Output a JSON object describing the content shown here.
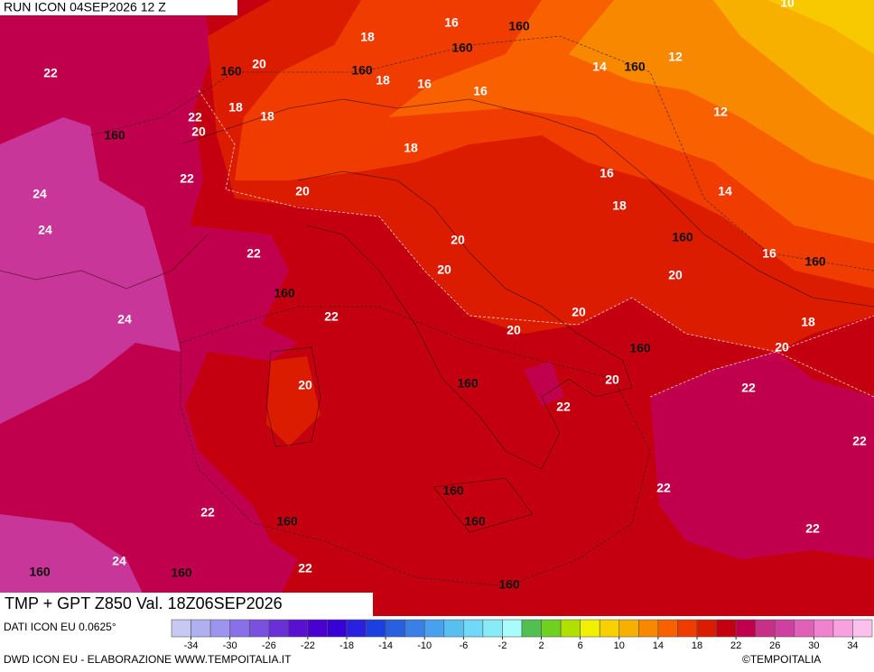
{
  "header": "RUN ICON 04SEP2026 12 Z",
  "title": "TMP + GPT Z850 Val. 18Z06SEP2026",
  "source": "DATI ICON EU 0.0625°",
  "credit": "DWD ICON EU - ELABORAZIONE WWW.TEMPOITALIA.IT",
  "copyright": "©TEMPOITALIA",
  "colorbar": {
    "range": [
      -36,
      36
    ],
    "ticks": [
      -34,
      -30,
      -26,
      -22,
      -18,
      -14,
      -10,
      -6,
      -2,
      2,
      6,
      10,
      14,
      18,
      22,
      26,
      30,
      34
    ],
    "colors": [
      "#c8c8f4",
      "#b0b0f0",
      "#9c94ee",
      "#8a70e8",
      "#7a50e0",
      "#6a30d8",
      "#5a10d0",
      "#4a00d0",
      "#3a00d8",
      "#2a20e0",
      "#1c40e0",
      "#2860e0",
      "#3880e8",
      "#48a0f0",
      "#58c0f0",
      "#70d8f8",
      "#88ecf8",
      "#a8fcfc",
      "#50c050",
      "#70d020",
      "#b0e000",
      "#f0f000",
      "#f8d000",
      "#f8b000",
      "#f88800",
      "#f86000",
      "#f03c00",
      "#dc1c00",
      "#c40010",
      "#c0004c",
      "#c83088",
      "#d040a0",
      "#e060b8",
      "#f080d0",
      "#f8a0e0",
      "#fcc0ec"
    ]
  },
  "isotherm_labels": [
    16,
    18,
    20,
    18,
    16,
    16,
    14,
    12,
    12,
    18,
    18,
    22,
    20,
    22,
    22,
    18,
    16,
    14,
    18,
    20,
    24,
    24,
    20,
    22,
    20,
    16,
    20,
    24,
    22,
    20,
    20,
    18,
    20,
    20,
    20,
    22,
    22,
    22,
    22,
    22,
    22,
    24,
    22,
    10
  ],
  "geopotential_labels": [
    160,
    160,
    160,
    160,
    160,
    160,
    160,
    160,
    160,
    160,
    160,
    160,
    160,
    160,
    160,
    160,
    160
  ]
}
